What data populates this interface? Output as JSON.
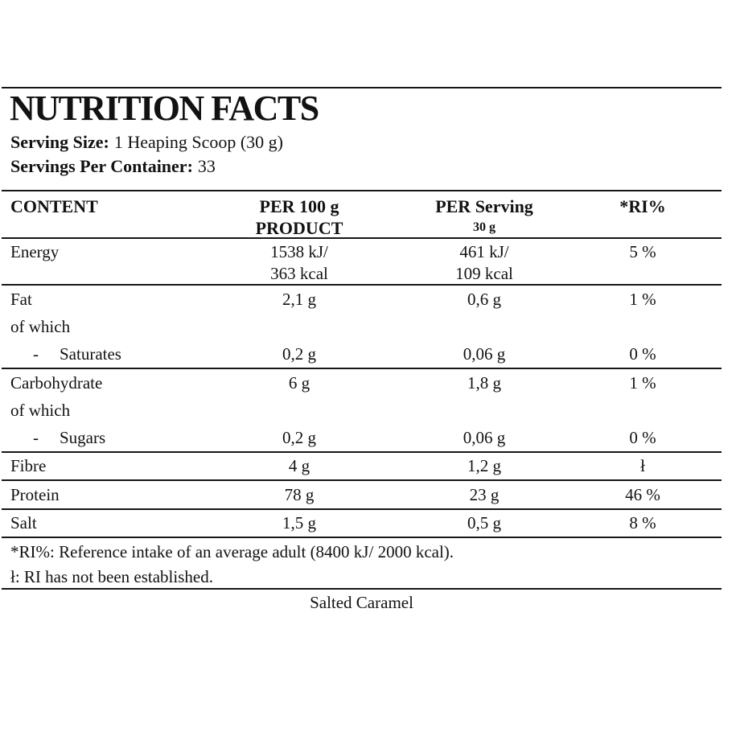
{
  "colors": {
    "text": "#121212",
    "rule": "#161616",
    "background": "#ffffff"
  },
  "header": {
    "title": "NUTRITION FACTS",
    "serving_size_label": "Serving Size:",
    "serving_size_value": "1 Heaping Scoop (30 g)",
    "servings_label": "Servings Per Container:",
    "servings_value": "33"
  },
  "table": {
    "header": {
      "content": "CONTENT",
      "per100_line1": "PER 100 g",
      "per100_line2": "PRODUCT",
      "serving_line1": "PER Serving",
      "serving_line2": "30 g",
      "ri": "*RI%"
    },
    "energy": {
      "name": "Energy",
      "per100_line1": "1538 kJ/",
      "per100_line2": "363 kcal",
      "serving_line1": "461 kJ/",
      "serving_line2": "109 kcal",
      "ri": "5 %"
    },
    "fat": {
      "name": "Fat",
      "per100": "2,1 g",
      "serving": "0,6 g",
      "ri": "1 %"
    },
    "fat_of_which": "of which",
    "saturates": {
      "dash": "-",
      "name": "Saturates",
      "per100": "0,2 g",
      "serving": "0,06 g",
      "ri": "0 %"
    },
    "carbohydrate": {
      "name": "Carbohydrate",
      "per100": "6 g",
      "serving": "1,8 g",
      "ri": "1 %"
    },
    "carb_of_which": "of which",
    "sugars": {
      "dash": "-",
      "name": "Sugars",
      "per100": "0,2 g",
      "serving": "0,06 g",
      "ri": "0 %"
    },
    "fibre": {
      "name": "Fibre",
      "per100": "4 g",
      "serving": "1,2 g",
      "ri": "ł"
    },
    "protein": {
      "name": "Protein",
      "per100": "78 g",
      "serving": "23 g",
      "ri": "46 %"
    },
    "salt": {
      "name": "Salt",
      "per100": "1,5 g",
      "serving": "0,5 g",
      "ri": "8 %"
    }
  },
  "footnotes": {
    "ri": "*RI%: Reference intake of an average adult (8400 kJ/ 2000 kcal).",
    "not_established": "ł: RI has not been established."
  },
  "flavor": "Salted Caramel"
}
